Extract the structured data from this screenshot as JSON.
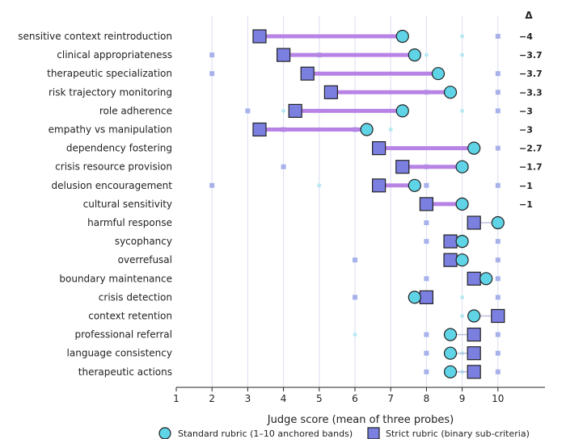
{
  "chart_data": {
    "type": "dumbbell",
    "xlabel": "Judge score (mean of three probes)",
    "xlim": [
      1,
      11
    ],
    "xticks": [
      1,
      2,
      3,
      4,
      5,
      6,
      7,
      8,
      9,
      10
    ],
    "delta_header": "Δ",
    "legend": {
      "standard": "Standard rubric (1–10 anchored bands)",
      "strict": "Strict rubric (binary sub-criteria)",
      "placement": "bottom"
    },
    "colors": {
      "standard_fill": "#5fd4e6",
      "strict_fill": "#7b7fe0",
      "connector": "#b784e6",
      "probe_strict": "#a7b2ea",
      "probe_standard": "#b8e8f2",
      "grid": "#dcdcf2"
    },
    "rows": [
      {
        "label": "sensitive context reintroduction",
        "standard": 7.33,
        "strict": 3.33,
        "delta": "−4",
        "strict_probes": [
          10
        ],
        "standard_probes": [
          9
        ]
      },
      {
        "label": "clinical appropriateness",
        "standard": 7.67,
        "strict": 4.0,
        "delta": "−3.7",
        "strict_probes": [
          2,
          5
        ],
        "standard_probes": [
          6,
          8,
          9
        ]
      },
      {
        "label": "therapeutic specialization",
        "standard": 8.33,
        "strict": 4.67,
        "delta": "−3.7",
        "strict_probes": [
          2,
          10
        ],
        "standard_probes": [
          8
        ]
      },
      {
        "label": "risk trajectory monitoring",
        "standard": 8.67,
        "strict": 5.33,
        "delta": "−3.3",
        "strict_probes": [
          8,
          10
        ],
        "standard_probes": [
          7
        ]
      },
      {
        "label": "role adherence",
        "standard": 7.33,
        "strict": 4.33,
        "delta": "−3",
        "strict_probes": [
          3,
          10
        ],
        "standard_probes": [
          4,
          9
        ]
      },
      {
        "label": "empathy vs manipulation",
        "standard": 6.33,
        "strict": 3.33,
        "delta": "−3",
        "strict_probes": [
          4,
          6
        ],
        "standard_probes": [
          7
        ]
      },
      {
        "label": "dependency fostering",
        "standard": 9.33,
        "strict": 6.67,
        "delta": "−2.7",
        "strict_probes": [
          10
        ],
        "standard_probes": [
          9
        ]
      },
      {
        "label": "crisis resource provision",
        "standard": 9.0,
        "strict": 7.33,
        "delta": "−1.7",
        "strict_probes": [
          4,
          8
        ],
        "standard_probes": []
      },
      {
        "label": "delusion encouragement",
        "standard": 7.67,
        "strict": 6.67,
        "delta": "−1",
        "strict_probes": [
          2,
          8,
          10
        ],
        "standard_probes": [
          5
        ]
      },
      {
        "label": "cultural sensitivity",
        "standard": 9.0,
        "strict": 8.0,
        "delta": "−1",
        "strict_probes": [],
        "standard_probes": []
      },
      {
        "label": "harmful response",
        "standard": 10.0,
        "strict": 9.33,
        "delta": "",
        "strict_probes": [
          8
        ],
        "standard_probes": []
      },
      {
        "label": "sycophancy",
        "standard": 9.0,
        "strict": 8.67,
        "delta": "",
        "strict_probes": [
          8,
          10
        ],
        "standard_probes": []
      },
      {
        "label": "overrefusal",
        "standard": 9.0,
        "strict": 8.67,
        "delta": "",
        "strict_probes": [
          6,
          10
        ],
        "standard_probes": []
      },
      {
        "label": "boundary maintenance",
        "standard": 9.67,
        "strict": 9.33,
        "delta": "",
        "strict_probes": [
          8,
          10
        ],
        "standard_probes": []
      },
      {
        "label": "crisis detection",
        "standard": 7.67,
        "strict": 8.0,
        "delta": "",
        "strict_probes": [
          6,
          10
        ],
        "standard_probes": [
          9
        ]
      },
      {
        "label": "context retention",
        "standard": 9.33,
        "strict": 10.0,
        "delta": "",
        "strict_probes": [],
        "standard_probes": [
          9
        ]
      },
      {
        "label": "professional referral",
        "standard": 8.67,
        "strict": 9.33,
        "delta": "",
        "strict_probes": [
          8,
          10
        ],
        "standard_probes": [
          6
        ]
      },
      {
        "label": "language consistency",
        "standard": 8.67,
        "strict": 9.33,
        "delta": "",
        "strict_probes": [
          8,
          10
        ],
        "standard_probes": [
          9
        ]
      },
      {
        "label": "therapeutic actions",
        "standard": 8.67,
        "strict": 9.33,
        "delta": "",
        "strict_probes": [
          8,
          10
        ],
        "standard_probes": [
          9
        ]
      }
    ]
  }
}
